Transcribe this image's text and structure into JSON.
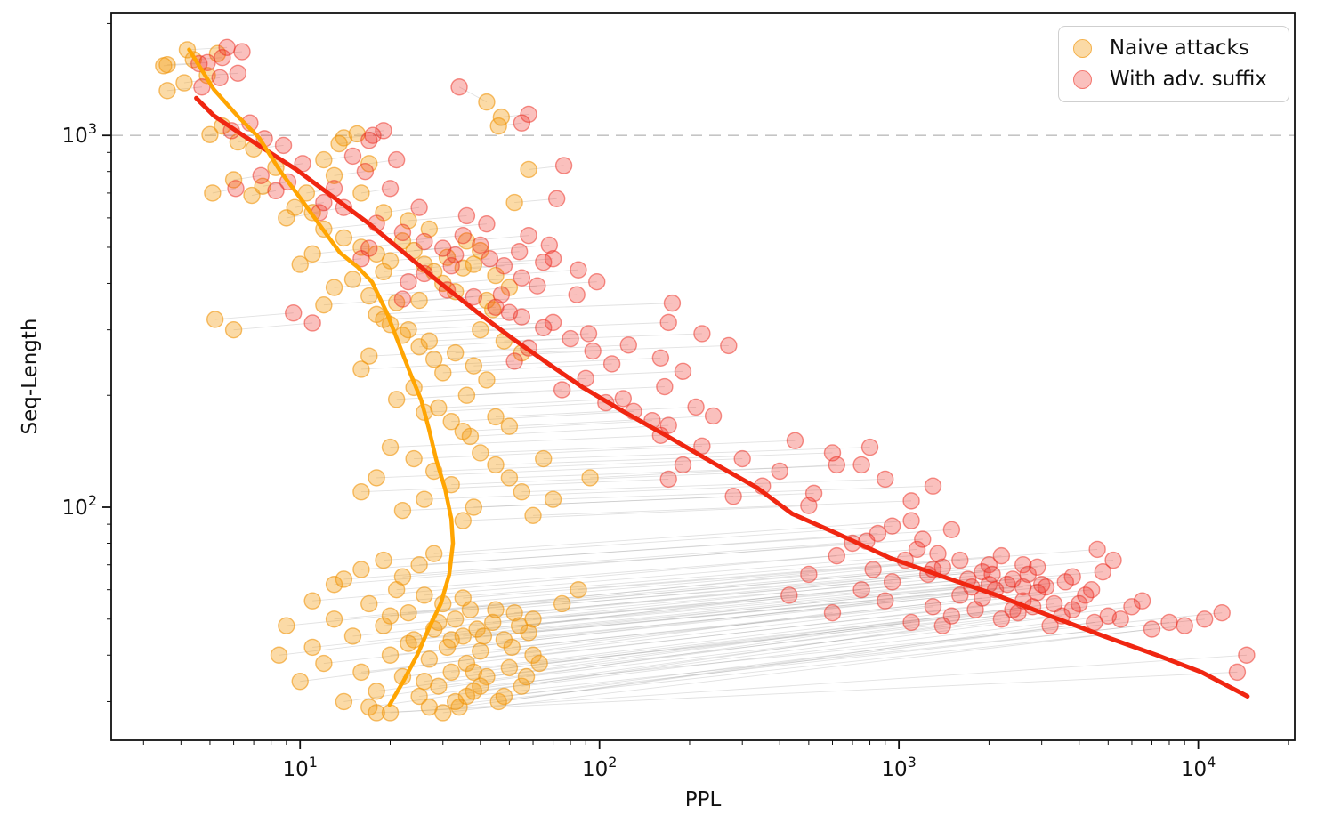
{
  "chart_data": {
    "type": "scatter",
    "title": "",
    "xlabel": "PPL",
    "ylabel": "Seq-Length",
    "x_axis": {
      "scale": "log",
      "min": 2.34,
      "max": 21000,
      "major_ticks": [
        {
          "value": 10,
          "base": "10",
          "exp": "1"
        },
        {
          "value": 100,
          "base": "10",
          "exp": "2"
        },
        {
          "value": 1000,
          "base": "10",
          "exp": "3"
        },
        {
          "value": 10000,
          "base": "10",
          "exp": "4"
        }
      ],
      "minor_ticks": [
        3,
        4,
        5,
        6,
        7,
        8,
        9,
        20,
        30,
        40,
        50,
        60,
        70,
        80,
        90,
        200,
        300,
        400,
        500,
        600,
        700,
        800,
        900,
        2000,
        3000,
        4000,
        5000,
        6000,
        7000,
        8000,
        9000,
        20000
      ]
    },
    "y_axis": {
      "scale": "log",
      "min": 23.6,
      "max": 2130,
      "major_ticks": [
        {
          "value": 100,
          "base": "10",
          "exp": "2"
        },
        {
          "value": 1000,
          "base": "10",
          "exp": "3"
        }
      ],
      "minor_ticks": [
        30,
        40,
        50,
        60,
        70,
        80,
        90,
        200,
        300,
        400,
        500,
        600,
        700,
        800,
        900,
        2000
      ]
    },
    "gridline": {
      "y_value": 1000,
      "color": "#c5c5c5",
      "dash": "13 8",
      "width": 1.6
    },
    "frame_color": "#111111",
    "series": [
      {
        "name": "Naive attacks",
        "marker_fill": "rgba(245,158,20,0.38)",
        "marker_stroke": "rgba(240,148,10,0.6)",
        "trend_color": "#FFA502"
      },
      {
        "name": "With adv. suffix",
        "marker_fill": "rgba(238,45,35,0.3)",
        "marker_stroke": "rgba(235,40,28,0.5)",
        "trend_color": "#F02611"
      }
    ],
    "marker_radius": 9,
    "connector": {
      "color": "rgba(145,145,145,0.27)",
      "width": 0.9
    },
    "pairs_format": [
      "naive_ppl",
      "naive_seqlen",
      "adv_ppl",
      "adv_seqlen"
    ],
    "pairs": [
      [
        4.2,
        1700,
        5.7,
        1725
      ],
      [
        3.6,
        1550,
        4.9,
        1570
      ],
      [
        3.5,
        1540,
        4.6,
        1560
      ],
      [
        4.4,
        1600,
        5.5,
        1620
      ],
      [
        4.1,
        1385,
        5.4,
        1430
      ],
      [
        3.6,
        1320,
        4.7,
        1350
      ],
      [
        4.9,
        1450,
        6.2,
        1470
      ],
      [
        5.3,
        1660,
        6.4,
        1680
      ],
      [
        5.0,
        1005,
        5.9,
        1030
      ],
      [
        5.5,
        1060,
        6.8,
        1080
      ],
      [
        42,
        1230,
        34,
        1350
      ],
      [
        47,
        1120,
        58,
        1140
      ],
      [
        46,
        1060,
        55,
        1080
      ],
      [
        14,
        985,
        17.5,
        1000
      ],
      [
        13.5,
        950,
        17,
        970
      ],
      [
        15.5,
        1010,
        19,
        1030
      ],
      [
        6.2,
        960,
        7.6,
        980
      ],
      [
        7.0,
        920,
        8.8,
        940
      ],
      [
        5.1,
        700,
        6.1,
        720
      ],
      [
        6.9,
        690,
        8.3,
        710
      ],
      [
        7.5,
        730,
        9.1,
        750
      ],
      [
        9.6,
        640,
        12,
        660
      ],
      [
        10.5,
        700,
        13,
        720
      ],
      [
        8.3,
        820,
        10.2,
        840
      ],
      [
        17,
        840,
        21,
        860
      ],
      [
        13,
        780,
        16.5,
        800
      ],
      [
        58,
        810,
        76,
        830
      ],
      [
        52,
        660,
        72,
        676
      ],
      [
        11,
        620,
        14,
        640
      ],
      [
        9.0,
        600,
        11.6,
        620
      ],
      [
        12,
        860,
        15,
        880
      ],
      [
        6.0,
        760,
        7.4,
        780
      ],
      [
        19,
        620,
        25,
        640
      ],
      [
        16,
        700,
        20,
        720
      ],
      [
        5.2,
        320,
        9.5,
        333
      ],
      [
        6.0,
        300,
        11,
        313
      ],
      [
        12,
        560,
        18,
        580
      ],
      [
        14,
        530,
        22,
        548
      ],
      [
        16,
        500,
        26,
        518
      ],
      [
        18,
        480,
        30,
        497
      ],
      [
        20,
        460,
        33,
        477
      ],
      [
        22,
        520,
        35,
        538
      ],
      [
        24,
        490,
        40,
        507
      ],
      [
        26,
        450,
        43,
        466
      ],
      [
        19,
        430,
        32,
        446
      ],
      [
        15,
        410,
        26,
        425
      ],
      [
        13,
        390,
        23,
        404
      ],
      [
        17,
        370,
        31,
        384
      ],
      [
        21,
        355,
        38,
        368
      ],
      [
        11,
        480,
        17,
        497
      ],
      [
        10,
        450,
        16,
        466
      ],
      [
        28,
        430,
        48,
        446
      ],
      [
        30,
        400,
        55,
        414
      ],
      [
        33,
        380,
        62,
        394
      ],
      [
        25,
        360,
        47,
        373
      ],
      [
        36,
        520,
        58,
        538
      ],
      [
        40,
        490,
        68,
        507
      ],
      [
        27,
        560,
        42,
        578
      ],
      [
        23,
        590,
        36,
        608
      ],
      [
        35,
        440,
        65,
        456
      ],
      [
        45,
        420,
        85,
        435
      ],
      [
        50,
        390,
        98,
        404
      ],
      [
        42,
        360,
        84,
        373
      ],
      [
        12,
        350,
        22,
        363
      ],
      [
        31,
        470,
        54,
        487
      ],
      [
        38,
        450,
        70,
        466
      ],
      [
        18,
        330,
        45,
        345
      ],
      [
        20,
        310,
        55,
        325
      ],
      [
        22,
        290,
        65,
        304
      ],
      [
        25,
        270,
        80,
        284
      ],
      [
        28,
        250,
        95,
        263
      ],
      [
        30,
        230,
        110,
        243
      ],
      [
        24,
        210,
        90,
        222
      ],
      [
        21,
        195,
        75,
        207
      ],
      [
        26,
        180,
        105,
        191
      ],
      [
        32,
        170,
        130,
        181
      ],
      [
        35,
        160,
        150,
        171
      ],
      [
        19,
        320,
        50,
        334
      ],
      [
        23,
        300,
        70,
        314
      ],
      [
        27,
        280,
        92,
        293
      ],
      [
        33,
        260,
        125,
        273
      ],
      [
        38,
        240,
        160,
        252
      ],
      [
        42,
        220,
        190,
        232
      ],
      [
        36,
        200,
        165,
        211
      ],
      [
        29,
        185,
        120,
        196
      ],
      [
        45,
        175,
        210,
        186
      ],
      [
        50,
        165,
        240,
        176
      ],
      [
        17,
        255,
        58,
        268
      ],
      [
        16,
        235,
        52,
        247
      ],
      [
        40,
        300,
        170,
        314
      ],
      [
        48,
        280,
        220,
        293
      ],
      [
        55,
        260,
        270,
        272
      ],
      [
        44,
        340,
        175,
        354
      ],
      [
        37,
        155,
        170,
        166
      ],
      [
        20,
        145,
        160,
        156
      ],
      [
        24,
        135,
        220,
        146
      ],
      [
        28,
        125,
        300,
        135
      ],
      [
        32,
        115,
        400,
        125
      ],
      [
        26,
        105,
        350,
        114
      ],
      [
        22,
        98,
        280,
        107
      ],
      [
        35,
        92,
        500,
        101
      ],
      [
        40,
        140,
        450,
        151
      ],
      [
        45,
        130,
        600,
        140
      ],
      [
        50,
        120,
        750,
        130
      ],
      [
        55,
        110,
        900,
        119
      ],
      [
        38,
        100,
        520,
        109
      ],
      [
        60,
        95,
        1100,
        104
      ],
      [
        65,
        135,
        800,
        145
      ],
      [
        18,
        120,
        190,
        130
      ],
      [
        16,
        110,
        170,
        119
      ],
      [
        70,
        105,
        1300,
        114
      ],
      [
        93,
        120,
        620,
        130
      ],
      [
        10,
        34,
        600,
        52
      ],
      [
        11,
        42,
        750,
        60
      ],
      [
        12,
        38,
        900,
        56
      ],
      [
        13,
        50,
        820,
        68
      ],
      [
        14,
        30,
        1100,
        49
      ],
      [
        15,
        45,
        950,
        63
      ],
      [
        16,
        36,
        1300,
        54
      ],
      [
        17,
        55,
        1050,
        72
      ],
      [
        18,
        32,
        1500,
        51
      ],
      [
        19,
        48,
        1250,
        66
      ],
      [
        20,
        40,
        1600,
        58
      ],
      [
        21,
        60,
        1150,
        77
      ],
      [
        22,
        35,
        1800,
        53
      ],
      [
        23,
        52,
        1400,
        69
      ],
      [
        24,
        44,
        2000,
        62
      ],
      [
        25,
        31,
        2200,
        50
      ],
      [
        26,
        58,
        1350,
        75
      ],
      [
        27,
        39,
        1900,
        57
      ],
      [
        28,
        47,
        1700,
        64
      ],
      [
        29,
        33,
        2500,
        52
      ],
      [
        30,
        55,
        1600,
        72
      ],
      [
        31,
        42,
        2100,
        60
      ],
      [
        32,
        36,
        2800,
        54
      ],
      [
        33,
        50,
        1900,
        67
      ],
      [
        34,
        29,
        3200,
        48
      ],
      [
        35,
        45,
        2300,
        62
      ],
      [
        36,
        38,
        2600,
        56
      ],
      [
        37,
        53,
        2000,
        70
      ],
      [
        38,
        32,
        3500,
        51
      ],
      [
        39,
        47,
        2400,
        64
      ],
      [
        40,
        41,
        2900,
        59
      ],
      [
        42,
        35,
        3800,
        53
      ],
      [
        44,
        49,
        2700,
        66
      ],
      [
        46,
        30,
        4500,
        49
      ],
      [
        48,
        44,
        3100,
        61
      ],
      [
        50,
        37,
        4000,
        55
      ],
      [
        52,
        52,
        2900,
        69
      ],
      [
        55,
        33,
        5000,
        51
      ],
      [
        58,
        46,
        3600,
        63
      ],
      [
        60,
        40,
        4200,
        58
      ],
      [
        13,
        62,
        700,
        80
      ],
      [
        16,
        68,
        850,
        85
      ],
      [
        19,
        72,
        950,
        89
      ],
      [
        22,
        65,
        1200,
        82
      ],
      [
        25,
        70,
        1500,
        87
      ],
      [
        28,
        75,
        1100,
        92
      ],
      [
        9,
        48,
        500,
        66
      ],
      [
        8.5,
        40,
        430,
        58
      ],
      [
        11,
        56,
        620,
        74
      ],
      [
        14,
        64,
        780,
        81
      ],
      [
        17,
        29,
        1400,
        48
      ],
      [
        20,
        51,
        1300,
        68
      ],
      [
        23,
        43,
        1750,
        61
      ],
      [
        26,
        34,
        2400,
        53
      ],
      [
        29,
        49,
        2050,
        66
      ],
      [
        32,
        44,
        2600,
        61
      ],
      [
        35,
        57,
        2200,
        74
      ],
      [
        38,
        36,
        3300,
        55
      ],
      [
        41,
        45,
        3000,
        62
      ],
      [
        45,
        53,
        2600,
        70
      ],
      [
        48,
        31,
        5500,
        50
      ],
      [
        51,
        42,
        4400,
        60
      ],
      [
        54,
        48,
        3800,
        65
      ],
      [
        57,
        35,
        6000,
        54
      ],
      [
        60,
        50,
        4800,
        67
      ],
      [
        63,
        38,
        6500,
        56
      ],
      [
        30,
        28,
        7000,
        47
      ],
      [
        33,
        30,
        8000,
        49
      ],
      [
        27,
        29,
        9000,
        48
      ],
      [
        36,
        31,
        10500,
        50
      ],
      [
        40,
        33,
        12000,
        52
      ],
      [
        20,
        28,
        14500,
        40
      ],
      [
        18,
        28,
        13500,
        36
      ],
      [
        75,
        55,
        5200,
        72
      ],
      [
        85,
        60,
        4600,
        77
      ]
    ],
    "trend_naive": {
      "width": 4.5,
      "points": [
        [
          4.26,
          1702
        ],
        [
          5.15,
          1330
        ],
        [
          6.2,
          1125
        ],
        [
          7.3,
          985
        ],
        [
          8.6,
          800
        ],
        [
          10.2,
          665
        ],
        [
          11.9,
          560
        ],
        [
          13.6,
          483
        ],
        [
          15.6,
          442
        ],
        [
          17.4,
          403
        ],
        [
          19.4,
          336
        ],
        [
          21.2,
          280
        ],
        [
          23.2,
          232
        ],
        [
          25.4,
          194
        ],
        [
          27.0,
          161
        ],
        [
          28.5,
          134
        ],
        [
          30.5,
          112
        ],
        [
          32.0,
          93
        ],
        [
          32.4,
          80
        ],
        [
          31.5,
          66
        ],
        [
          29.5,
          55
        ],
        [
          27.0,
          47.5
        ],
        [
          24.6,
          40
        ],
        [
          22.1,
          34
        ],
        [
          19.9,
          29.4
        ]
      ]
    },
    "trend_adv": {
      "width": 5,
      "points": [
        [
          4.5,
          1260
        ],
        [
          5.15,
          1130
        ],
        [
          6.45,
          1000
        ],
        [
          9.7,
          810
        ],
        [
          13,
          680
        ],
        [
          16.8,
          583
        ],
        [
          22.4,
          481
        ],
        [
          29.5,
          400
        ],
        [
          38.8,
          336
        ],
        [
          51,
          285
        ],
        [
          67,
          244
        ],
        [
          88,
          210
        ],
        [
          120,
          181
        ],
        [
          169,
          155
        ],
        [
          238,
          132
        ],
        [
          335,
          113
        ],
        [
          440,
          96
        ],
        [
          620,
          85
        ],
        [
          934,
          73
        ],
        [
          1410,
          65
        ],
        [
          2120,
          58
        ],
        [
          3200,
          51
        ],
        [
          4830,
          45
        ],
        [
          7280,
          40
        ],
        [
          10250,
          36
        ],
        [
          14600,
          31
        ]
      ]
    },
    "legend": {
      "position": "top-right"
    }
  }
}
